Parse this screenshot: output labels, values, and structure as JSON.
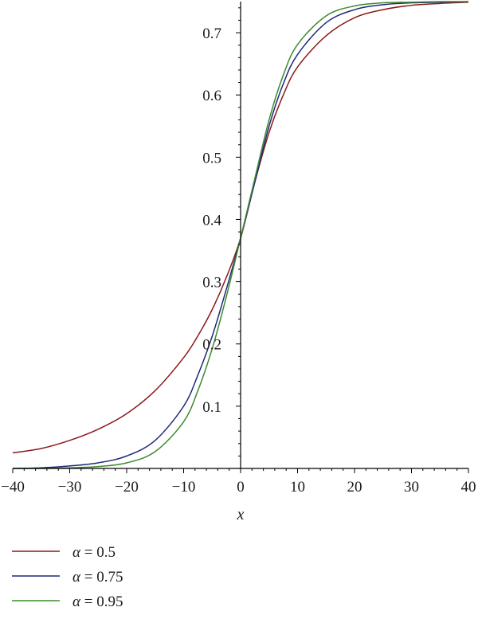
{
  "chart_data": {
    "type": "line",
    "title": "",
    "xlabel": "x",
    "ylabel": "",
    "xlim": [
      -40,
      40
    ],
    "ylim": [
      0,
      0.75
    ],
    "x_ticks": [
      -40,
      -30,
      -20,
      -10,
      0,
      10,
      20,
      30,
      40
    ],
    "x_tick_labels": [
      "−40",
      "−30",
      "−20",
      "−10",
      "0",
      "10",
      "20",
      "30",
      "40"
    ],
    "y_ticks": [
      0.1,
      0.2,
      0.3,
      0.4,
      0.5,
      0.6,
      0.7
    ],
    "y_tick_labels": [
      "0.1",
      "0.2",
      "0.3",
      "0.4",
      "0.5",
      "0.6",
      "0.7"
    ],
    "grid": false,
    "legend_position": "bottom-left",
    "x": [
      -40,
      -35,
      -30,
      -25,
      -20,
      -15,
      -10,
      -7.5,
      -5,
      -2.5,
      0,
      2.5,
      5,
      7.5,
      10,
      15,
      20,
      25,
      30,
      35,
      40
    ],
    "series": [
      {
        "name": "α = 0.5",
        "symbol": "α",
        "value_text": " = 0.5",
        "color": "#8b1a1a",
        "values": [
          0.025,
          0.032,
          0.045,
          0.063,
          0.088,
          0.125,
          0.178,
          0.213,
          0.255,
          0.307,
          0.37,
          0.46,
          0.54,
          0.6,
          0.645,
          0.695,
          0.724,
          0.737,
          0.744,
          0.747,
          0.749
        ]
      },
      {
        "name": "α = 0.75",
        "symbol": "α",
        "value_text": " = 0.75",
        "color": "#1f2a7a",
        "values": [
          0.0,
          0.001,
          0.004,
          0.009,
          0.02,
          0.045,
          0.1,
          0.15,
          0.212,
          0.288,
          0.37,
          0.46,
          0.55,
          0.618,
          0.665,
          0.716,
          0.737,
          0.745,
          0.748,
          0.749,
          0.75
        ]
      },
      {
        "name": "α = 0.95",
        "symbol": "α",
        "value_text": " = 0.95",
        "color": "#3f8a2e",
        "values": [
          0.0,
          0.0,
          0.001,
          0.003,
          0.009,
          0.027,
          0.075,
          0.125,
          0.192,
          0.276,
          0.37,
          0.466,
          0.56,
          0.632,
          0.681,
          0.727,
          0.743,
          0.748,
          0.749,
          0.75,
          0.75
        ]
      }
    ]
  }
}
